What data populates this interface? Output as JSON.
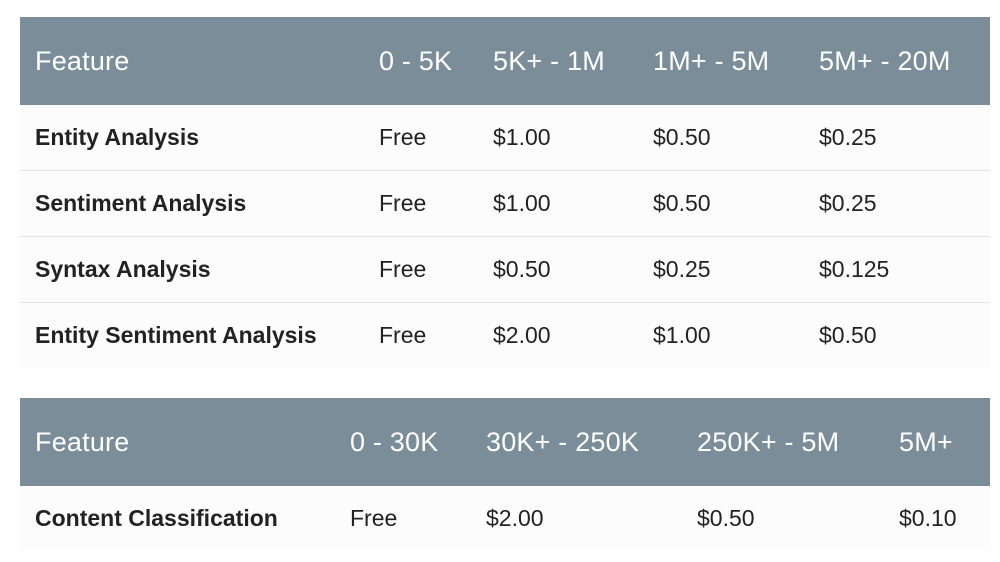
{
  "table_1": {
    "headers": [
      "Feature",
      "0 - 5K",
      "5K+ - 1M",
      "1M+ - 5M",
      "5M+ - 20M"
    ],
    "rows": [
      [
        "Entity Analysis",
        "Free",
        "$1.00",
        "$0.50",
        "$0.25"
      ],
      [
        "Sentiment Analysis",
        "Free",
        "$1.00",
        "$0.50",
        "$0.25"
      ],
      [
        "Syntax Analysis",
        "Free",
        "$0.50",
        "$0.25",
        "$0.125"
      ],
      [
        "Entity Sentiment Analysis",
        "Free",
        "$2.00",
        "$1.00",
        "$0.50"
      ]
    ]
  },
  "table_2": {
    "headers": [
      "Feature",
      "0 - 30K",
      "30K+ - 250K",
      "250K+ - 5M",
      "5M+"
    ],
    "rows": [
      [
        "Content Classification",
        "Free",
        "$2.00",
        "$0.50",
        "$0.10"
      ]
    ]
  },
  "colors": {
    "header_background": "#7a8d99",
    "header_text": "#ffffff",
    "body_text": "#222222",
    "row_divider": "#e3e3e3"
  }
}
